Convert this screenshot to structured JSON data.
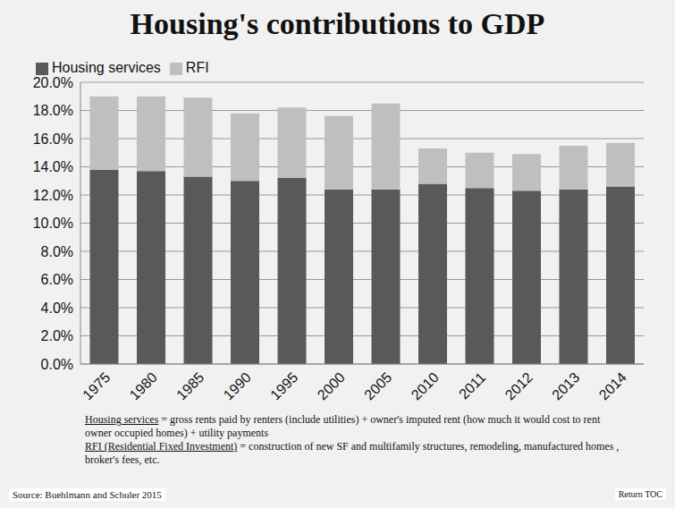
{
  "chart_data": {
    "type": "bar",
    "title": "Housing's contributions to GDP",
    "categories": [
      "1975",
      "1980",
      "1985",
      "1990",
      "1995",
      "2000",
      "2005",
      "2010",
      "2011",
      "2012",
      "2013",
      "2014"
    ],
    "series": [
      {
        "name": "Housing services",
        "color": "#595959",
        "values": [
          13.8,
          13.7,
          13.3,
          13.0,
          13.2,
          12.4,
          12.4,
          12.8,
          12.5,
          12.3,
          12.4,
          12.6
        ]
      },
      {
        "name": "RFI",
        "color": "#bfbfbf",
        "values": [
          5.2,
          5.3,
          5.6,
          4.8,
          5.0,
          5.2,
          6.1,
          2.5,
          2.5,
          2.6,
          3.1,
          3.1
        ]
      }
    ],
    "stacked": true,
    "ylim": [
      0,
      20
    ],
    "yticks": [
      {
        "value": 0,
        "label": "0.0%"
      },
      {
        "value": 2,
        "label": "2.0%"
      },
      {
        "value": 4,
        "label": "4.0%"
      },
      {
        "value": 6,
        "label": "6.0%"
      },
      {
        "value": 8,
        "label": "8.0%"
      },
      {
        "value": 10,
        "label": "10.0%"
      },
      {
        "value": 12,
        "label": "12.0%"
      },
      {
        "value": 14,
        "label": "14.0%"
      },
      {
        "value": 16,
        "label": "16.0%"
      },
      {
        "value": 18,
        "label": "18.0%"
      },
      {
        "value": 20,
        "label": "20.0%"
      }
    ],
    "grid": true,
    "legend": "top-left",
    "notes": [
      {
        "term": "Housing services",
        "text": " = gross rents paid by renters (include utilities) + owner's imputed rent (how much it would cost to rent owner occupied homes) + utility payments"
      },
      {
        "term": "RFI (Residential Fixed Investment)",
        "text": " = construction of new SF and multifamily structures, remodeling, manufactured homes , broker's fees, etc."
      }
    ],
    "source": "Source: Buehlmann and Schuler 2015",
    "corner_note": "Return TOC"
  }
}
